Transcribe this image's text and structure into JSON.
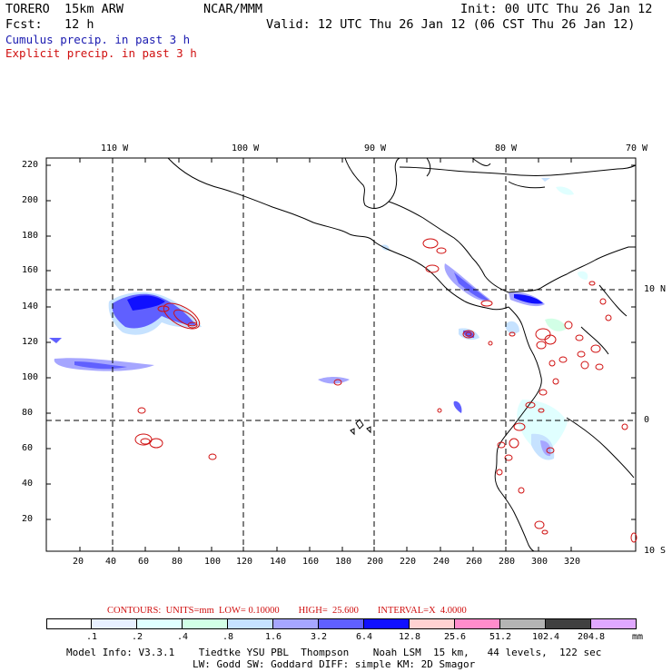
{
  "header": {
    "model": "TORERO  15km ARW",
    "center": "NCAR/MMM",
    "init": "Init: 00 UTC Thu 26 Jan 12",
    "fcst": "Fcst:   12 h",
    "valid": "Valid: 12 UTC Thu 26 Jan 12 (06 CST Thu 26 Jan 12)",
    "line_blue": "Cumulus precip. in past 3 h",
    "line_red": "Explicit precip. in past 3 h"
  },
  "axes": {
    "top_lon": [
      "110 W",
      "100 W",
      "90 W",
      "80 W",
      "70 W"
    ],
    "right_lat": [
      "10 N",
      "0",
      "10 S"
    ],
    "y_ticks": [
      "220",
      "200",
      "180",
      "160",
      "140",
      "120",
      "100",
      "80",
      "60",
      "40",
      "20"
    ],
    "x_ticks": [
      "20",
      "40",
      "60",
      "80",
      "100",
      "120",
      "140",
      "160",
      "180",
      "200",
      "220",
      "240",
      "260",
      "280",
      "300",
      "320"
    ]
  },
  "contours": {
    "text": "CONTOURS:  UNITS=mm  LOW= 0.10000        HIGH=  25.600        INTERVAL=X  4.0000"
  },
  "legend": {
    "colors": [
      "#ffffff",
      "#e8f0ff",
      "#e0ffff",
      "#d2ffe6",
      "#c6e2ff",
      "#a6a6ff",
      "#6060ff",
      "#1010ff",
      "#ffd2d2",
      "#ff8ccc",
      "#b4b4b4",
      "#404040",
      "#e0a8ff"
    ],
    "ticks": [
      ".1",
      ".2",
      ".4",
      ".8",
      "1.6",
      "3.2",
      "6.4",
      "12.8",
      "25.6",
      "51.2",
      "102.4",
      "204.8"
    ],
    "unit": "mm"
  },
  "footer": {
    "line1": "Model Info: V3.3.1    Tiedtke YSU PBL  Thompson    Noah LSM  15 km,   44 levels,  122 sec",
    "line2": "LW: Godd SW: Goddard DIFF: simple KM: 2D Smagor"
  }
}
